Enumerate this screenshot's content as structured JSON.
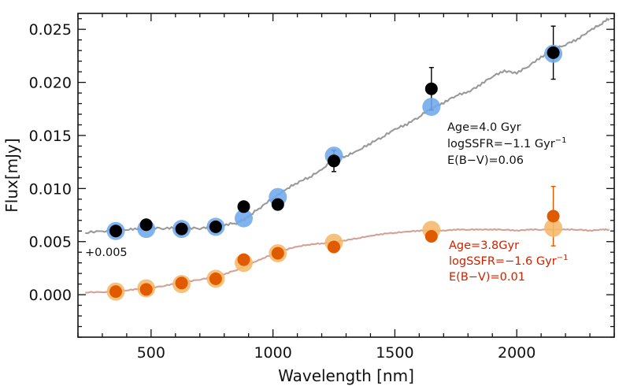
{
  "chart_data": {
    "type": "scatter",
    "title": "",
    "xlabel": "Wavelength [nm]",
    "ylabel": "Flux[mJy]",
    "xlim": [
      200,
      2400
    ],
    "ylim": [
      -0.004,
      0.0265
    ],
    "xticks": [
      500,
      1000,
      1500,
      2000
    ],
    "xtick_labels": [
      "500",
      "1000",
      "1500",
      "2000"
    ],
    "yticks": [
      0.0,
      0.005,
      0.01,
      0.015,
      0.02,
      0.025
    ],
    "ytick_labels": [
      "0.000",
      "0.005",
      "0.010",
      "0.015",
      "0.020",
      "0.025"
    ],
    "offset_label": "+0.005",
    "series": [
      {
        "name": "Observed photometry (upper)",
        "kind": "points",
        "color": "#000000",
        "x": [
          355,
          480,
          625,
          765,
          880,
          1020,
          1250,
          1650,
          2150
        ],
        "y": [
          0.006,
          0.0066,
          0.0062,
          0.0064,
          0.0083,
          0.0085,
          0.0126,
          0.0194,
          0.0228
        ],
        "err": [
          null,
          null,
          null,
          null,
          null,
          null,
          0.001,
          0.002,
          0.0025
        ]
      },
      {
        "name": "Model photometry (upper)",
        "kind": "points",
        "color": "#6fa8ec",
        "x": [
          355,
          480,
          625,
          765,
          880,
          1020,
          1250,
          1650,
          2150
        ],
        "y": [
          0.006,
          0.0062,
          0.0062,
          0.0064,
          0.0072,
          0.0092,
          0.0131,
          0.0177,
          0.0227
        ]
      },
      {
        "name": "Model spectrum (upper)",
        "kind": "line",
        "color": "#999999",
        "x": [
          230,
          300,
          350,
          400,
          450,
          500,
          550,
          600,
          650,
          700,
          750,
          800,
          850,
          880,
          900,
          950,
          1000,
          1050,
          1100,
          1150,
          1200,
          1250,
          1300,
          1350,
          1400,
          1450,
          1500,
          1550,
          1600,
          1650,
          1700,
          1750,
          1800,
          1850,
          1900,
          1950,
          2000,
          2050,
          2100,
          2150,
          2200,
          2250,
          2300,
          2350,
          2380
        ],
        "y": [
          0.0058,
          0.0059,
          0.006,
          0.0061,
          0.0061,
          0.0062,
          0.0062,
          0.0062,
          0.0062,
          0.0062,
          0.0063,
          0.0065,
          0.0067,
          0.007,
          0.0073,
          0.0082,
          0.009,
          0.0098,
          0.0105,
          0.011,
          0.0117,
          0.0127,
          0.013,
          0.0135,
          0.0142,
          0.0148,
          0.0155,
          0.016,
          0.0167,
          0.0175,
          0.018,
          0.0187,
          0.019,
          0.0197,
          0.0205,
          0.021,
          0.0208,
          0.0215,
          0.0223,
          0.023,
          0.0235,
          0.024,
          0.0248,
          0.0255,
          0.026
        ]
      },
      {
        "name": "Observed photometry (lower)",
        "kind": "points",
        "color": "#e05a00",
        "x": [
          355,
          480,
          625,
          765,
          880,
          1020,
          1250,
          1650,
          2150
        ],
        "y": [
          0.0003,
          0.0005,
          0.0011,
          0.0015,
          0.0033,
          0.0039,
          0.0045,
          0.0055,
          0.0074
        ],
        "err": [
          null,
          null,
          null,
          null,
          null,
          null,
          null,
          0.0005,
          0.0028
        ]
      },
      {
        "name": "Model photometry (lower)",
        "kind": "points",
        "color": "#f5b86a",
        "x": [
          355,
          480,
          625,
          765,
          880,
          1020,
          1250,
          1650,
          2150
        ],
        "y": [
          0.0003,
          0.0006,
          0.001,
          0.0015,
          0.003,
          0.0039,
          0.0049,
          0.0061,
          0.0063
        ]
      },
      {
        "name": "Model spectrum (lower)",
        "kind": "line",
        "color": "#d4a295",
        "x": [
          230,
          300,
          350,
          400,
          450,
          500,
          550,
          600,
          650,
          700,
          750,
          800,
          850,
          900,
          950,
          1000,
          1050,
          1100,
          1150,
          1200,
          1250,
          1300,
          1350,
          1400,
          1450,
          1500,
          1550,
          1600,
          1650,
          1700,
          1750,
          1800,
          1850,
          1900,
          1950,
          2000,
          2050,
          2100,
          2150,
          2200,
          2250,
          2300,
          2350,
          2380
        ],
        "y": [
          0.0002,
          0.0002,
          0.0003,
          0.0004,
          0.0005,
          0.0006,
          0.0008,
          0.001,
          0.0012,
          0.0014,
          0.0016,
          0.0019,
          0.0023,
          0.0028,
          0.0033,
          0.0038,
          0.0042,
          0.0045,
          0.0047,
          0.0048,
          0.0049,
          0.0051,
          0.0053,
          0.0055,
          0.0057,
          0.0058,
          0.0059,
          0.006,
          0.006,
          0.006,
          0.0061,
          0.0061,
          0.0061,
          0.0061,
          0.0061,
          0.006,
          0.0061,
          0.0061,
          0.0061,
          0.0061,
          0.0061,
          0.006,
          0.0061,
          0.0061
        ]
      }
    ],
    "annotations": [
      {
        "id": "upper",
        "color": "#111111",
        "lines": [
          {
            "text": "Age=4.0 Gyr"
          },
          {
            "text": "logSSFR=−1.1 Gyr",
            "sup": "−1"
          },
          {
            "text": "E(B−V)=0.06"
          }
        ]
      },
      {
        "id": "lower",
        "color": "#cc2200",
        "lines": [
          {
            "text": "Age=3.8Gyr"
          },
          {
            "text": "logSSFR=−1.6 Gyr",
            "sup": "−1"
          },
          {
            "text": "E(B−V)=0.01"
          }
        ]
      }
    ]
  }
}
